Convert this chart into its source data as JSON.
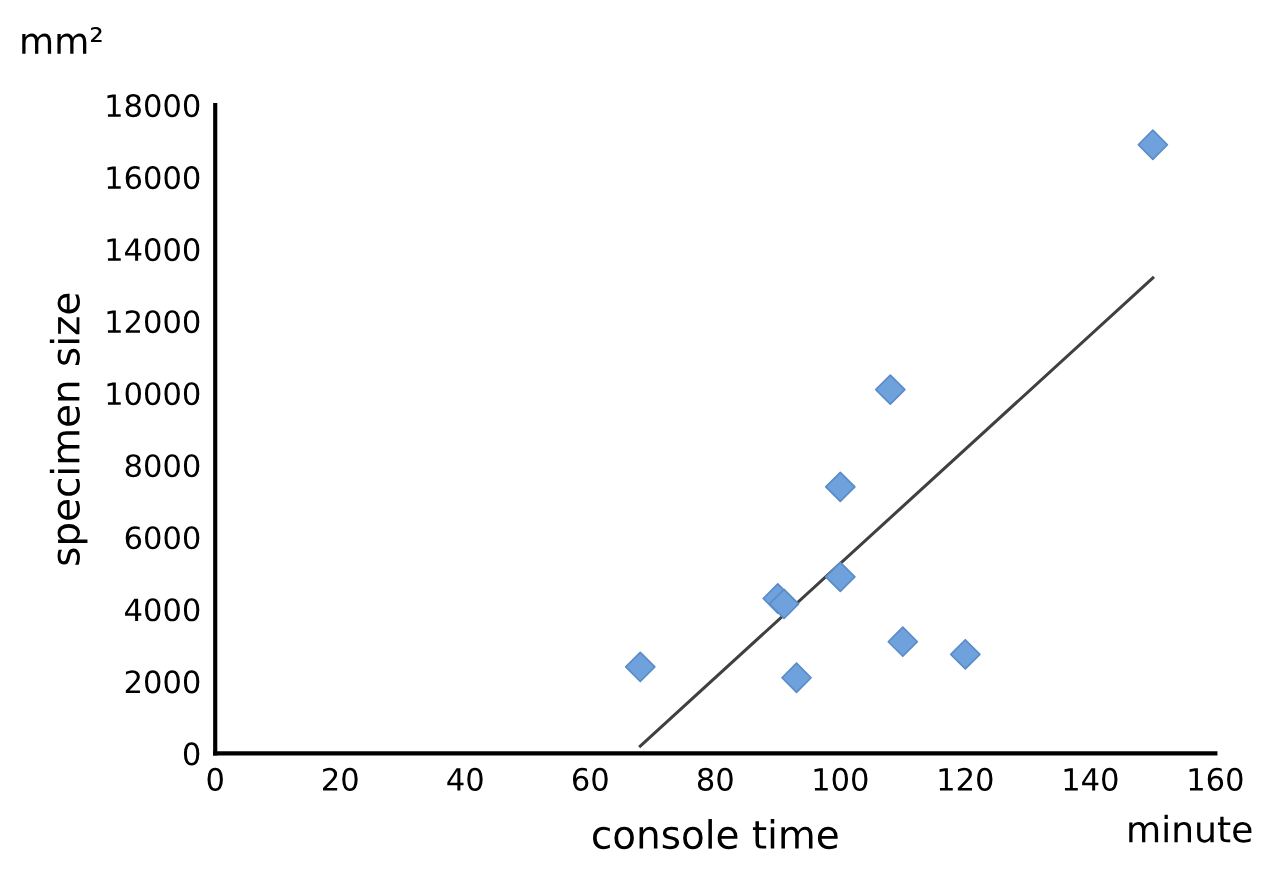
{
  "chart_data": {
    "type": "scatter",
    "xlabel": "console time",
    "ylabel": "specimen size",
    "annotations": [
      "mm²",
      "minute"
    ],
    "xlim": [
      0,
      160
    ],
    "xticks": [
      0,
      20,
      40,
      60,
      80,
      100,
      120,
      140,
      160
    ],
    "ylim": [
      0,
      18000
    ],
    "yticks": [
      0,
      2000,
      4000,
      6000,
      8000,
      10000,
      12000,
      14000,
      16000,
      18000
    ],
    "grid": false,
    "legend": false,
    "marker": "diamond",
    "series": [
      {
        "color": "#6fa1dc",
        "x": [
          68,
          90,
          91,
          93,
          100,
          100,
          108,
          110,
          120,
          150
        ],
        "values": [
          2400,
          4300,
          4150,
          2100,
          7400,
          4900,
          10100,
          3100,
          2750,
          16900
        ]
      },
      {
        "type": "line",
        "color": "#404040",
        "x": [
          68,
          150
        ],
        "values": [
          200,
          13200
        ],
        "marker": "none",
        "line_style": "solid"
      }
    ]
  }
}
